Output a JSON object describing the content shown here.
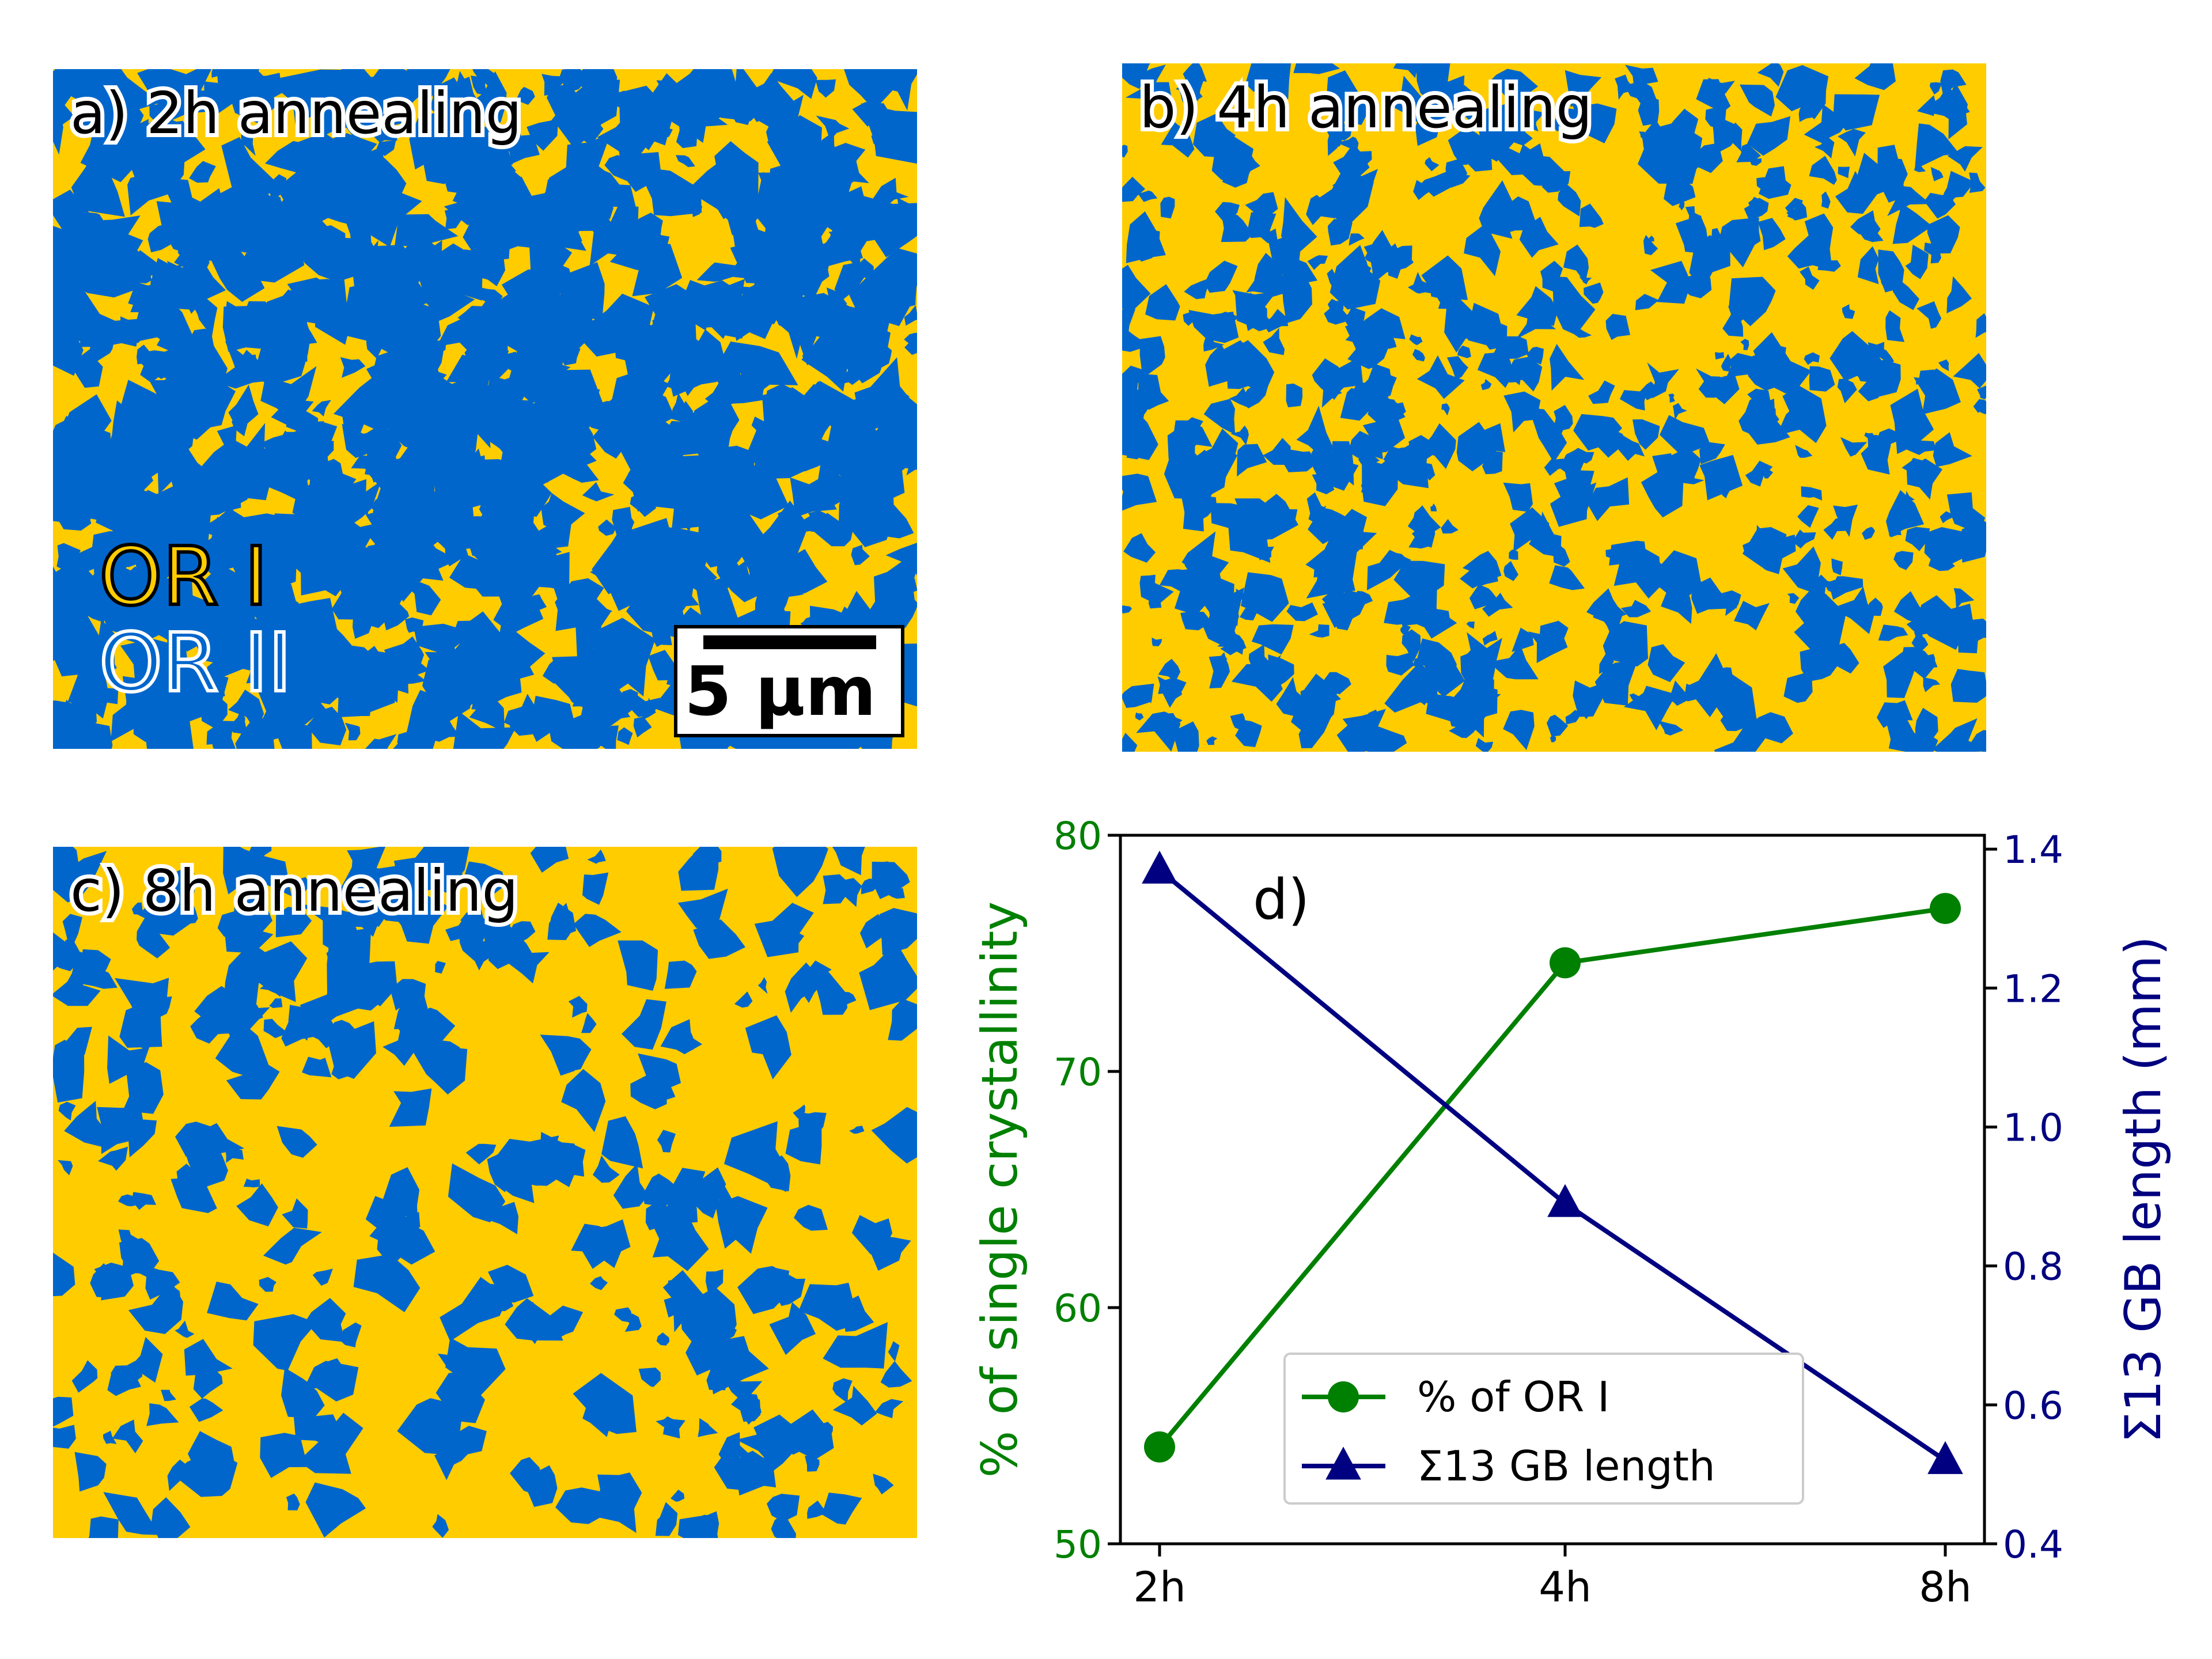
{
  "colors": {
    "or1": "#ffcc00",
    "or2": "#0066cc",
    "green": "#008000",
    "navy": "#000080"
  },
  "panels": {
    "a": {
      "label": "a) 2h annealing"
    },
    "b": {
      "label": "b) 4h annealing"
    },
    "c": {
      "label": "c) 8h annealing"
    }
  },
  "legend": {
    "or1": "OR I",
    "or2": "OR II"
  },
  "scalebar": {
    "label": "5 µm"
  },
  "chart_data": {
    "type": "line",
    "panel_label": "d)",
    "categories": [
      "2h",
      "4h",
      "8h"
    ],
    "ylabel_left": "% of single crystallinity",
    "ylabel_right": "Σ13 GB length (mm)",
    "ylim_left": [
      50,
      80
    ],
    "ylim_right": [
      0.4,
      1.42
    ],
    "yticks_left": [
      "50",
      "60",
      "70",
      "80"
    ],
    "yticks_right": [
      "0.4",
      "0.6",
      "0.8",
      "1.0",
      "1.2",
      "1.4"
    ],
    "series": [
      {
        "name": "% of OR I",
        "axis": "left",
        "marker": "circle",
        "color": "#008000",
        "values": [
          54.1,
          74.6,
          76.9
        ]
      },
      {
        "name": "Σ13 GB length",
        "axis": "right",
        "marker": "triangle",
        "color": "#000080",
        "values": [
          1.37,
          0.89,
          0.52
        ]
      }
    ],
    "legend_position": "lower-right"
  }
}
